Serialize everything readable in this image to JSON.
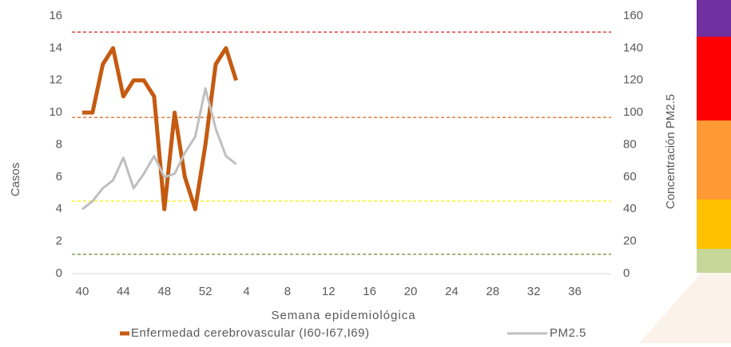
{
  "chart_data": {
    "type": "line",
    "ylabel": "Casos",
    "y2label": "Concentración PM2.5",
    "xlabel": "Semana epidemiológica",
    "categories": [
      40,
      null,
      null,
      null,
      44,
      null,
      null,
      null,
      48,
      null,
      null,
      null,
      52,
      null,
      null,
      null,
      4,
      null,
      null,
      null,
      8,
      null,
      null,
      null,
      12,
      null,
      null,
      null,
      16,
      null,
      null,
      null,
      20,
      null,
      null,
      null,
      24,
      null,
      null,
      null,
      28,
      null,
      null,
      null,
      32,
      null,
      null,
      null,
      36,
      null,
      null,
      null
    ],
    "ylim": [
      0,
      16
    ],
    "yticks": [
      0,
      2,
      4,
      6,
      8,
      10,
      12,
      14,
      16
    ],
    "y2lim": [
      0,
      160
    ],
    "y2ticks": [
      0,
      20,
      40,
      60,
      80,
      100,
      120,
      140,
      160
    ],
    "series": [
      {
        "name": "Enfermedad cerebrovascular (I60-I67,I69)",
        "color": "#c55a11",
        "width": 5,
        "values": [
          10,
          10,
          13,
          14,
          11,
          12,
          12,
          11,
          4,
          10,
          6,
          4,
          8,
          13,
          14,
          12,
          null,
          null,
          null,
          null,
          null,
          null,
          null,
          null,
          null,
          null,
          null,
          null,
          null,
          null,
          null,
          null,
          null,
          null,
          null,
          null,
          null,
          null,
          null,
          null,
          null,
          null,
          null,
          null,
          null,
          null,
          null,
          null,
          null,
          null,
          null,
          null
        ]
      },
      {
        "name": "PM2.5",
        "color": "#bfbfbf",
        "width": 3,
        "axis": "y2",
        "values": [
          40,
          45,
          53,
          58,
          72,
          53,
          62,
          73,
          60,
          62,
          75,
          85,
          115,
          90,
          73,
          68,
          null,
          null,
          null,
          null,
          null,
          null,
          null,
          null,
          null,
          null,
          null,
          null,
          null,
          null,
          null,
          null,
          null,
          null,
          null,
          null,
          null,
          null,
          null,
          null,
          null,
          null,
          null,
          null,
          null,
          null,
          null,
          null,
          null,
          null,
          null,
          null
        ]
      }
    ],
    "reference_lines": [
      {
        "value": 150,
        "color": "#e03030"
      },
      {
        "value": 97,
        "color": "#e07030"
      },
      {
        "value": 45,
        "color": "#f0f000"
      },
      {
        "value": 12,
        "color": "#6a8a30"
      }
    ]
  }
}
